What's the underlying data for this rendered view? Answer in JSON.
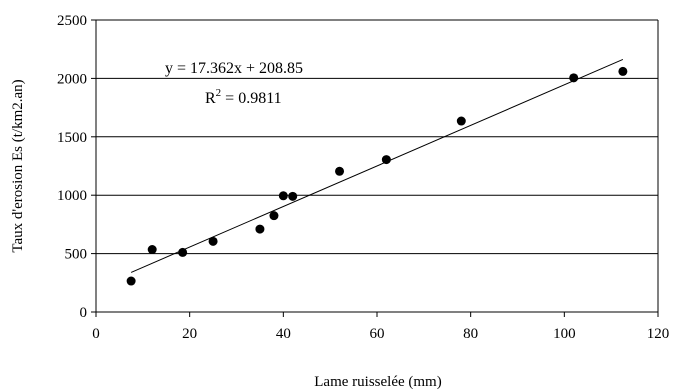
{
  "chart_data": {
    "type": "scatter",
    "xlabel": "Lame ruisselée (mm)",
    "ylabel": "Taux d'erosion Es (t/km2.an)",
    "xlim": [
      0,
      120
    ],
    "ylim": [
      0,
      2500
    ],
    "xticks": [
      0,
      20,
      40,
      60,
      80,
      100,
      120
    ],
    "yticks": [
      0,
      500,
      1000,
      1500,
      2000,
      2500
    ],
    "grid": {
      "horizontal": true,
      "vertical": false
    },
    "points": [
      {
        "x": 7.5,
        "y": 265
      },
      {
        "x": 12,
        "y": 535
      },
      {
        "x": 18.5,
        "y": 510
      },
      {
        "x": 25,
        "y": 605
      },
      {
        "x": 35,
        "y": 710
      },
      {
        "x": 38,
        "y": 825
      },
      {
        "x": 40,
        "y": 995
      },
      {
        "x": 42,
        "y": 990
      },
      {
        "x": 52,
        "y": 1205
      },
      {
        "x": 62,
        "y": 1305
      },
      {
        "x": 78,
        "y": 1635
      },
      {
        "x": 102,
        "y": 2005
      },
      {
        "x": 112.5,
        "y": 2060
      }
    ],
    "trendline": {
      "slope": 17.362,
      "intercept": 208.85,
      "x_start": 7.5,
      "x_end": 112.5
    },
    "annotations": {
      "equation": "y = 17.362x + 208.85",
      "r2_base": "R",
      "r2_exp": "2",
      "r2_value": " = 0.9811"
    }
  }
}
